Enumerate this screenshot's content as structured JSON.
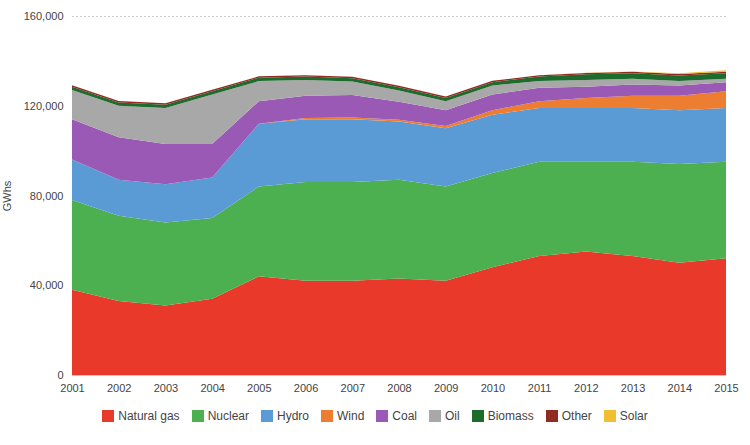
{
  "chart_data": {
    "type": "area",
    "stacked": true,
    "ylabel": "GWhs",
    "x": [
      2001,
      2002,
      2003,
      2004,
      2005,
      2006,
      2007,
      2008,
      2009,
      2010,
      2011,
      2012,
      2013,
      2014,
      2015
    ],
    "series": [
      {
        "name": "Natural gas",
        "color": "#E8392A",
        "values": [
          38000,
          33000,
          31000,
          34000,
          44000,
          42000,
          42000,
          43000,
          42000,
          48000,
          53000,
          55000,
          53000,
          50000,
          52000
        ]
      },
      {
        "name": "Nuclear",
        "color": "#4CAF50",
        "values": [
          40000,
          38000,
          37000,
          36000,
          40000,
          44000,
          44000,
          44000,
          42000,
          42000,
          42000,
          40000,
          42000,
          44000,
          43000
        ]
      },
      {
        "name": "Hydro",
        "color": "#5B9BD5",
        "values": [
          18000,
          16000,
          17000,
          18000,
          28000,
          28000,
          28000,
          26000,
          26000,
          26000,
          24000,
          24000,
          24000,
          24000,
          24000
        ]
      },
      {
        "name": "Wind",
        "color": "#ED7D31",
        "values": [
          0,
          0,
          0,
          0,
          0,
          500,
          800,
          800,
          1000,
          2000,
          3000,
          4500,
          5500,
          6500,
          7500
        ]
      },
      {
        "name": "Coal",
        "color": "#9B59B6",
        "values": [
          18000,
          19000,
          18000,
          15000,
          10000,
          10000,
          10000,
          8000,
          7000,
          7000,
          6000,
          5000,
          5000,
          4500,
          4000
        ]
      },
      {
        "name": "Oil",
        "color": "#A8A8A8",
        "values": [
          13000,
          14000,
          16000,
          22000,
          9000,
          7000,
          6000,
          5000,
          4000,
          4000,
          3000,
          3000,
          2500,
          2000,
          1500
        ]
      },
      {
        "name": "Biomass",
        "color": "#1E6B2E",
        "values": [
          1500,
          1500,
          1500,
          1500,
          1500,
          1500,
          1500,
          1500,
          1500,
          1500,
          2000,
          2500,
          2500,
          2500,
          2500
        ]
      },
      {
        "name": "Other",
        "color": "#922B21",
        "values": [
          600,
          600,
          600,
          600,
          600,
          600,
          600,
          600,
          600,
          600,
          600,
          600,
          600,
          600,
          600
        ]
      },
      {
        "name": "Solar",
        "color": "#F0C030",
        "values": [
          0,
          0,
          0,
          0,
          0,
          0,
          0,
          0,
          0,
          0,
          0,
          100,
          200,
          400,
          700
        ]
      }
    ],
    "xlim": [
      2001,
      2015
    ],
    "xticks": [
      2001,
      2002,
      2003,
      2004,
      2005,
      2006,
      2007,
      2008,
      2009,
      2010,
      2011,
      2012,
      2013,
      2014,
      2015
    ],
    "ylim": [
      0,
      160000
    ],
    "yticks": [
      0,
      {
        "value": 40000,
        "label": "40,000"
      },
      {
        "value": 80000,
        "label": "80,000"
      },
      {
        "value": 120000,
        "label": "120,000"
      },
      {
        "value": 160000,
        "label": "160,000"
      }
    ],
    "grid": true,
    "legend": "bottom"
  }
}
